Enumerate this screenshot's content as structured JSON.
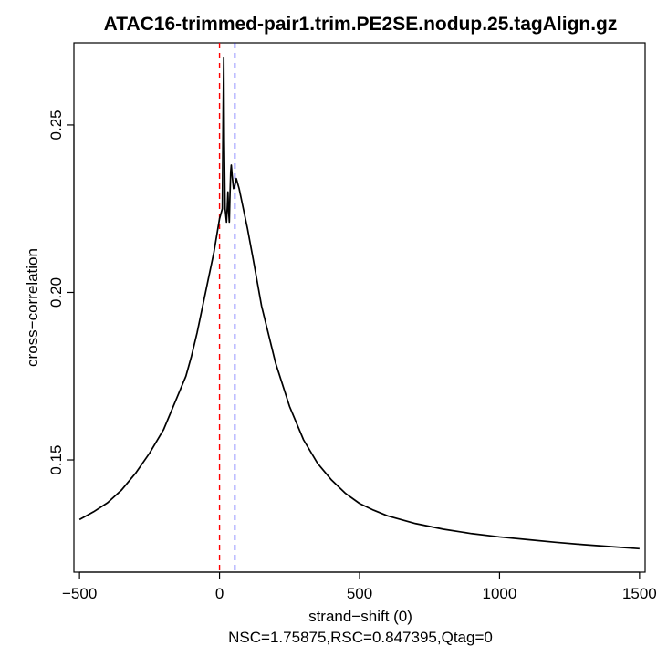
{
  "chart_data": {
    "type": "line",
    "title": "ATAC16-trimmed-pair1.trim.PE2SE.nodup.25.tagAlign.gz",
    "xlabel": "strand−shift (0)",
    "ylabel": "cross−correlation",
    "subtitle": "NSC=1.75875,RSC=0.847395,Qtag=0",
    "xlim": [
      -520,
      1520
    ],
    "ylim": [
      0.1165,
      0.2745
    ],
    "x_ticks": [
      -500,
      0,
      500,
      1000,
      1500
    ],
    "x_tick_labels": [
      "−500",
      "0",
      "500",
      "1000",
      "1500"
    ],
    "y_ticks": [
      0.15,
      0.2,
      0.25
    ],
    "y_tick_labels": [
      "0.15",
      "0.20",
      "0.25"
    ],
    "series": [
      {
        "name": "cross-correlation",
        "color": "#000000",
        "x": [
          -500,
          -450,
          -400,
          -350,
          -300,
          -250,
          -200,
          -150,
          -120,
          -100,
          -80,
          -60,
          -40,
          -20,
          -10,
          0,
          5,
          10,
          13,
          15,
          17,
          20,
          25,
          28,
          30,
          32,
          35,
          37,
          40,
          42,
          45,
          50,
          55,
          60,
          70,
          80,
          100,
          120,
          150,
          200,
          250,
          300,
          350,
          400,
          450,
          500,
          550,
          600,
          700,
          800,
          900,
          1000,
          1100,
          1200,
          1300,
          1400,
          1500
        ],
        "y": [
          0.1322,
          0.1345,
          0.1372,
          0.141,
          0.146,
          0.152,
          0.159,
          0.169,
          0.175,
          0.181,
          0.188,
          0.196,
          0.204,
          0.212,
          0.217,
          0.222,
          0.2235,
          0.225,
          0.255,
          0.27,
          0.245,
          0.225,
          0.221,
          0.226,
          0.23,
          0.225,
          0.221,
          0.228,
          0.236,
          0.238,
          0.235,
          0.231,
          0.232,
          0.234,
          0.231,
          0.227,
          0.219,
          0.21,
          0.196,
          0.179,
          0.166,
          0.156,
          0.149,
          0.144,
          0.14,
          0.137,
          0.135,
          0.1333,
          0.131,
          0.1293,
          0.128,
          0.127,
          0.1262,
          0.1254,
          0.1247,
          0.1241,
          0.1235
        ]
      }
    ],
    "vlines": [
      {
        "name": "red-dashed-line",
        "x": 0,
        "color": "#ff0000"
      },
      {
        "name": "blue-dashed-line",
        "x": 55,
        "color": "#0000ff"
      }
    ]
  }
}
